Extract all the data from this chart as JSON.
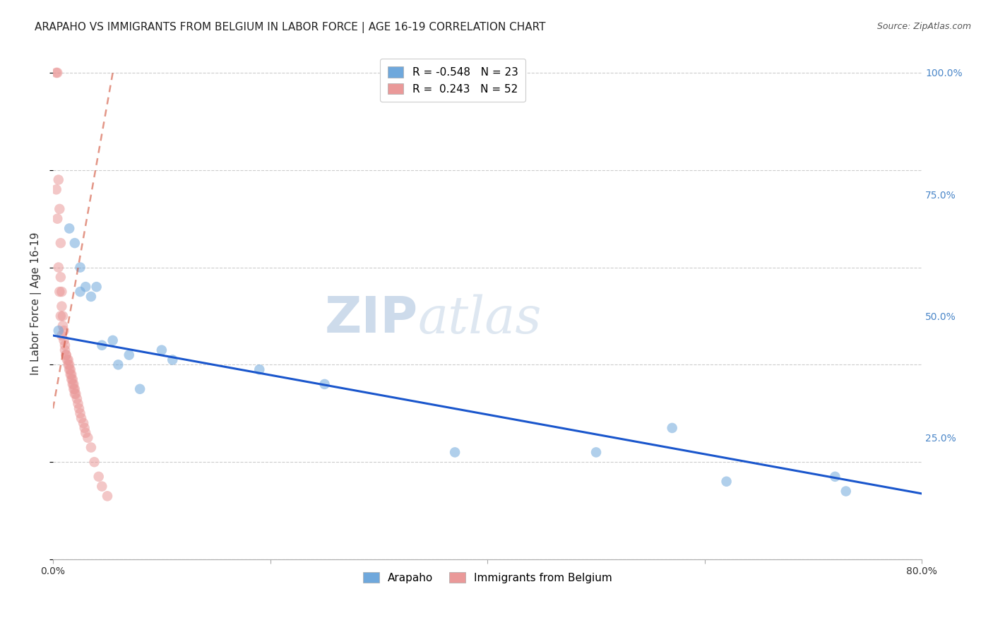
{
  "title": "ARAPAHO VS IMMIGRANTS FROM BELGIUM IN LABOR FORCE | AGE 16-19 CORRELATION CHART",
  "source": "Source: ZipAtlas.com",
  "ylabel": "In Labor Force | Age 16-19",
  "xlim": [
    0.0,
    0.8
  ],
  "ylim": [
    0.0,
    1.05
  ],
  "blue_R": -0.548,
  "blue_N": 23,
  "pink_R": 0.243,
  "pink_N": 52,
  "blue_color": "#6fa8dc",
  "pink_color": "#ea9999",
  "blue_line_color": "#1a56cc",
  "pink_line_color": "#cc4125",
  "watermark_zip": "ZIP",
  "watermark_atlas": "atlas",
  "blue_scatter_x": [
    0.005,
    0.015,
    0.02,
    0.025,
    0.025,
    0.03,
    0.035,
    0.04,
    0.045,
    0.055,
    0.06,
    0.07,
    0.08,
    0.1,
    0.11,
    0.19,
    0.25,
    0.37,
    0.5,
    0.57,
    0.62,
    0.72,
    0.73
  ],
  "blue_scatter_y": [
    0.47,
    0.68,
    0.65,
    0.6,
    0.55,
    0.56,
    0.54,
    0.56,
    0.44,
    0.45,
    0.4,
    0.42,
    0.35,
    0.43,
    0.41,
    0.39,
    0.36,
    0.22,
    0.22,
    0.27,
    0.16,
    0.17,
    0.14
  ],
  "pink_scatter_x": [
    0.003,
    0.004,
    0.005,
    0.006,
    0.007,
    0.007,
    0.008,
    0.008,
    0.009,
    0.009,
    0.01,
    0.01,
    0.011,
    0.011,
    0.012,
    0.012,
    0.013,
    0.014,
    0.014,
    0.015,
    0.015,
    0.016,
    0.016,
    0.017,
    0.017,
    0.018,
    0.018,
    0.019,
    0.019,
    0.02,
    0.02,
    0.021,
    0.022,
    0.023,
    0.024,
    0.025,
    0.026,
    0.028,
    0.029,
    0.03,
    0.032,
    0.035,
    0.038,
    0.042,
    0.045,
    0.05,
    0.003,
    0.004,
    0.005,
    0.006,
    0.007,
    0.008
  ],
  "pink_scatter_y": [
    1.0,
    1.0,
    0.78,
    0.72,
    0.65,
    0.58,
    0.55,
    0.52,
    0.5,
    0.48,
    0.47,
    0.45,
    0.44,
    0.43,
    0.42,
    0.42,
    0.41,
    0.41,
    0.4,
    0.4,
    0.39,
    0.39,
    0.38,
    0.38,
    0.37,
    0.37,
    0.36,
    0.36,
    0.35,
    0.35,
    0.34,
    0.34,
    0.33,
    0.32,
    0.31,
    0.3,
    0.29,
    0.28,
    0.27,
    0.26,
    0.25,
    0.23,
    0.2,
    0.17,
    0.15,
    0.13,
    0.76,
    0.7,
    0.6,
    0.55,
    0.5,
    0.46
  ],
  "blue_trend_x": [
    0.0,
    0.8
  ],
  "blue_trend_y": [
    0.46,
    0.135
  ],
  "pink_trend_x": [
    0.0,
    0.055
  ],
  "pink_trend_y": [
    0.31,
    1.0
  ],
  "grid_color": "#cccccc",
  "background_color": "#ffffff",
  "title_fontsize": 11,
  "axis_label_fontsize": 11,
  "tick_fontsize": 10,
  "right_tick_color": "#4a86c8"
}
